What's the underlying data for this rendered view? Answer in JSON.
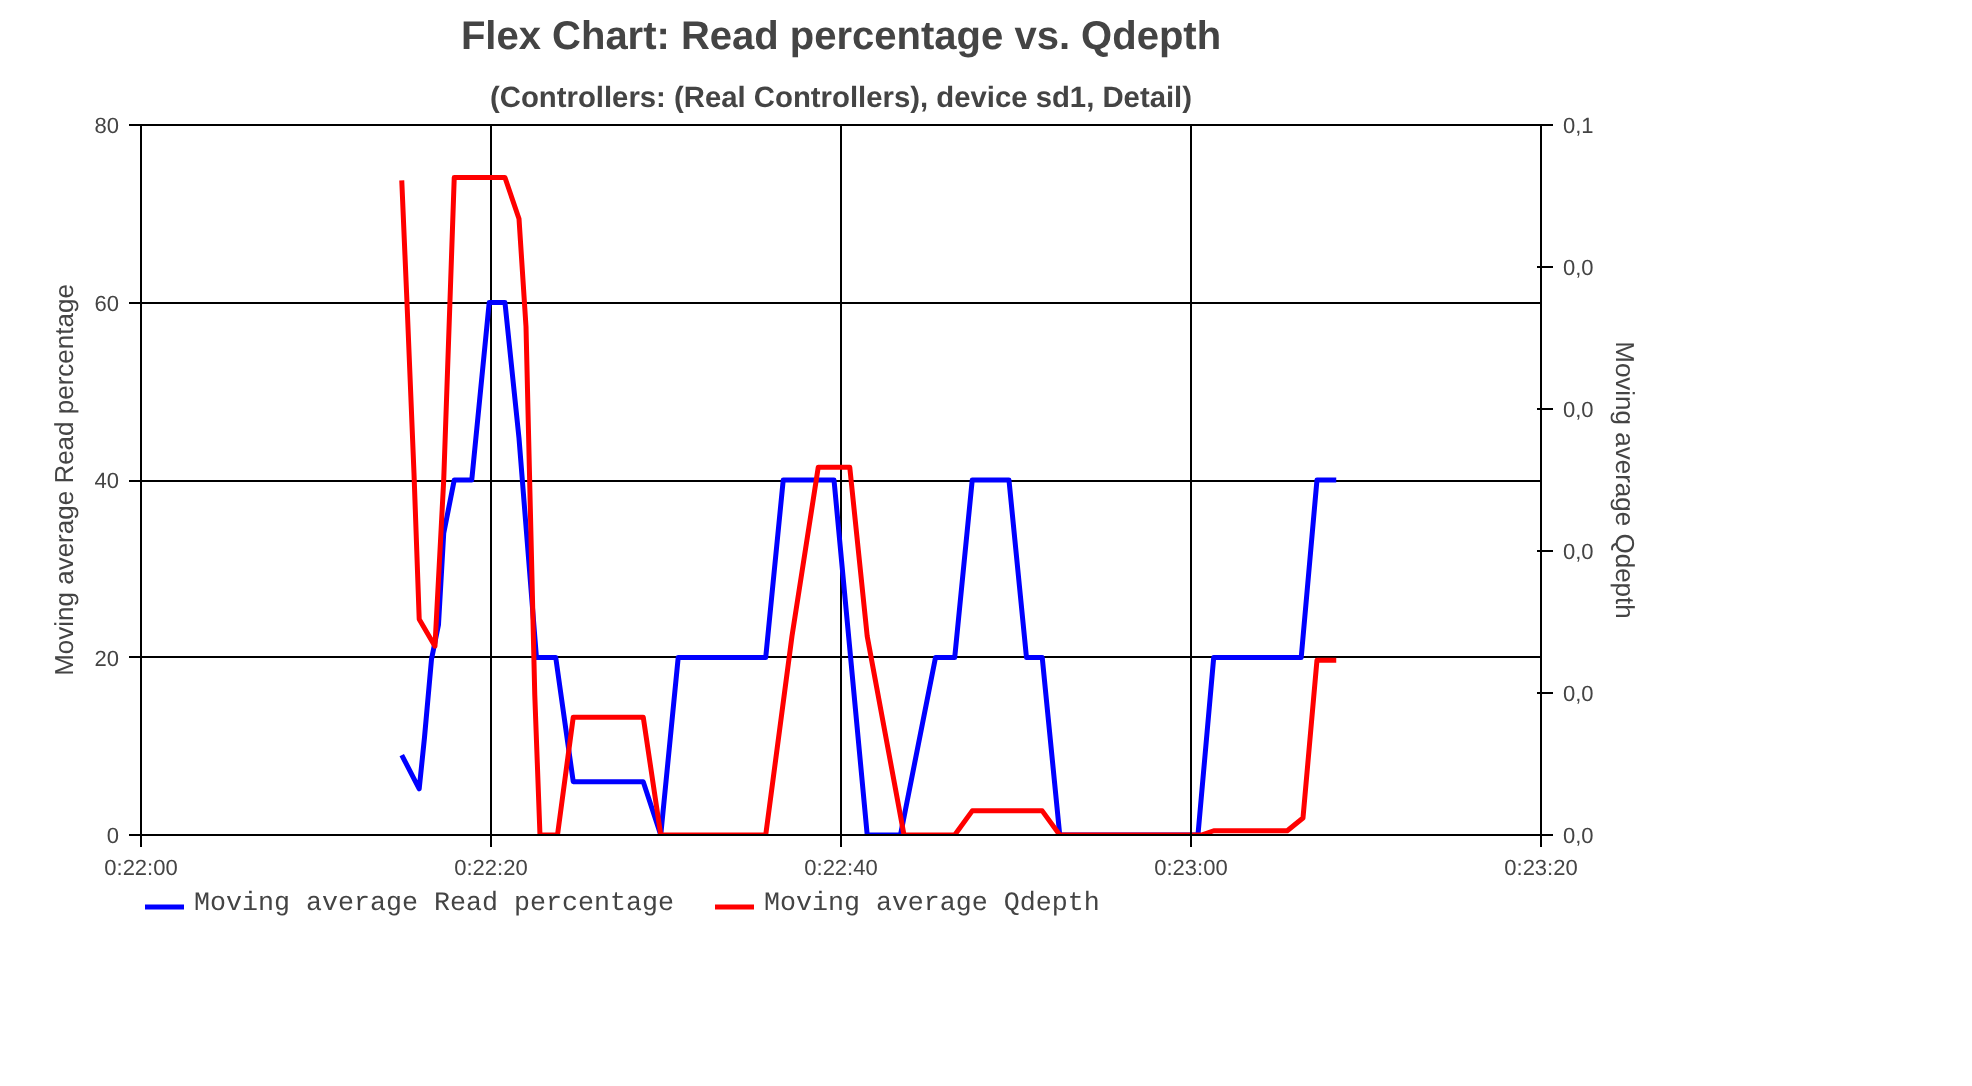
{
  "chart_data": {
    "type": "line",
    "title": "Flex Chart: Read percentage vs. Qdepth",
    "subtitle": "(Controllers: (Real Controllers), device sd1, Detail)",
    "ylabel": "Moving average Read percentage",
    "y2label": "Moving average Qdepth",
    "xlim": [
      0.366667,
      0.388889
    ],
    "xticks": [
      {
        "value": 0.366667,
        "label": "0:22:00"
      },
      {
        "value": 0.372222,
        "label": "0:22:20"
      },
      {
        "value": 0.377778,
        "label": "0:22:40"
      },
      {
        "value": 0.383333,
        "label": "0:23:00"
      },
      {
        "value": 0.388889,
        "label": "0:23:20"
      }
    ],
    "ylim": [
      0,
      80
    ],
    "yticks": [
      0,
      20,
      40,
      60,
      80
    ],
    "y2lim": [
      0,
      0.05
    ],
    "y2ticks": [
      {
        "value": 0,
        "label": "0,0"
      },
      {
        "value": 0.01,
        "label": "0,0"
      },
      {
        "value": 0.02,
        "label": "0,0"
      },
      {
        "value": 0.03,
        "label": "0,0"
      },
      {
        "value": 0.04,
        "label": "0,0"
      },
      {
        "value": 0.05,
        "label": "0,1"
      }
    ],
    "grid": true,
    "legend": "bottom",
    "marker": "none",
    "line_style": "solid",
    "series": [
      {
        "name": "Moving average Read percentage",
        "color": "#0000ff",
        "x": [
          0.370806,
          0.371083,
          0.371167,
          0.371278,
          0.371389,
          0.371472,
          0.371639,
          0.371917,
          0.372194,
          0.372444,
          0.372667,
          0.372944,
          0.37325,
          0.373528,
          0.374639,
          0.374917,
          0.375194,
          0.376583,
          0.376861,
          0.377667,
          0.378194,
          0.378722,
          0.379278,
          0.379583,
          0.379861,
          0.380444,
          0.380722,
          0.380972,
          0.38125,
          0.383444,
          0.383694,
          0.385083,
          0.385333,
          0.385639
        ],
        "values": [
          9,
          5.2,
          11,
          19.8,
          23.7,
          34,
          40,
          40,
          60,
          60,
          44.7,
          20,
          20,
          6,
          6,
          0,
          20,
          20,
          40,
          40,
          0,
          0,
          20,
          20,
          40,
          40,
          20,
          20,
          0,
          0,
          20,
          20,
          40,
          40
        ]
      },
      {
        "name": "Moving average Qdepth",
        "color": "#ff0000",
        "axis": "y2",
        "x": [
          0.370806,
          0.370889,
          0.371,
          0.371083,
          0.371333,
          0.371472,
          0.371583,
          0.371639,
          0.372444,
          0.372667,
          0.372778,
          0.372917,
          0.373,
          0.373278,
          0.373528,
          0.374639,
          0.374917,
          0.376583,
          0.377,
          0.377417,
          0.377917,
          0.378194,
          0.378778,
          0.379583,
          0.379861,
          0.380972,
          0.38125,
          0.3835,
          0.383694,
          0.384861,
          0.385111,
          0.385333,
          0.385639
        ],
        "values": [
          0.0461,
          0.0375,
          0.0255,
          0.0152,
          0.0133,
          0.025,
          0.0391,
          0.0463,
          0.0463,
          0.0434,
          0.0358,
          0.0099,
          0,
          0,
          0.0083,
          0.0083,
          0,
          0,
          0.014,
          0.0259,
          0.0259,
          0.014,
          0,
          0,
          0.0017,
          0.0017,
          0,
          0,
          0.0003,
          0.0003,
          0.0012,
          0.0123,
          0.0123
        ]
      }
    ]
  }
}
